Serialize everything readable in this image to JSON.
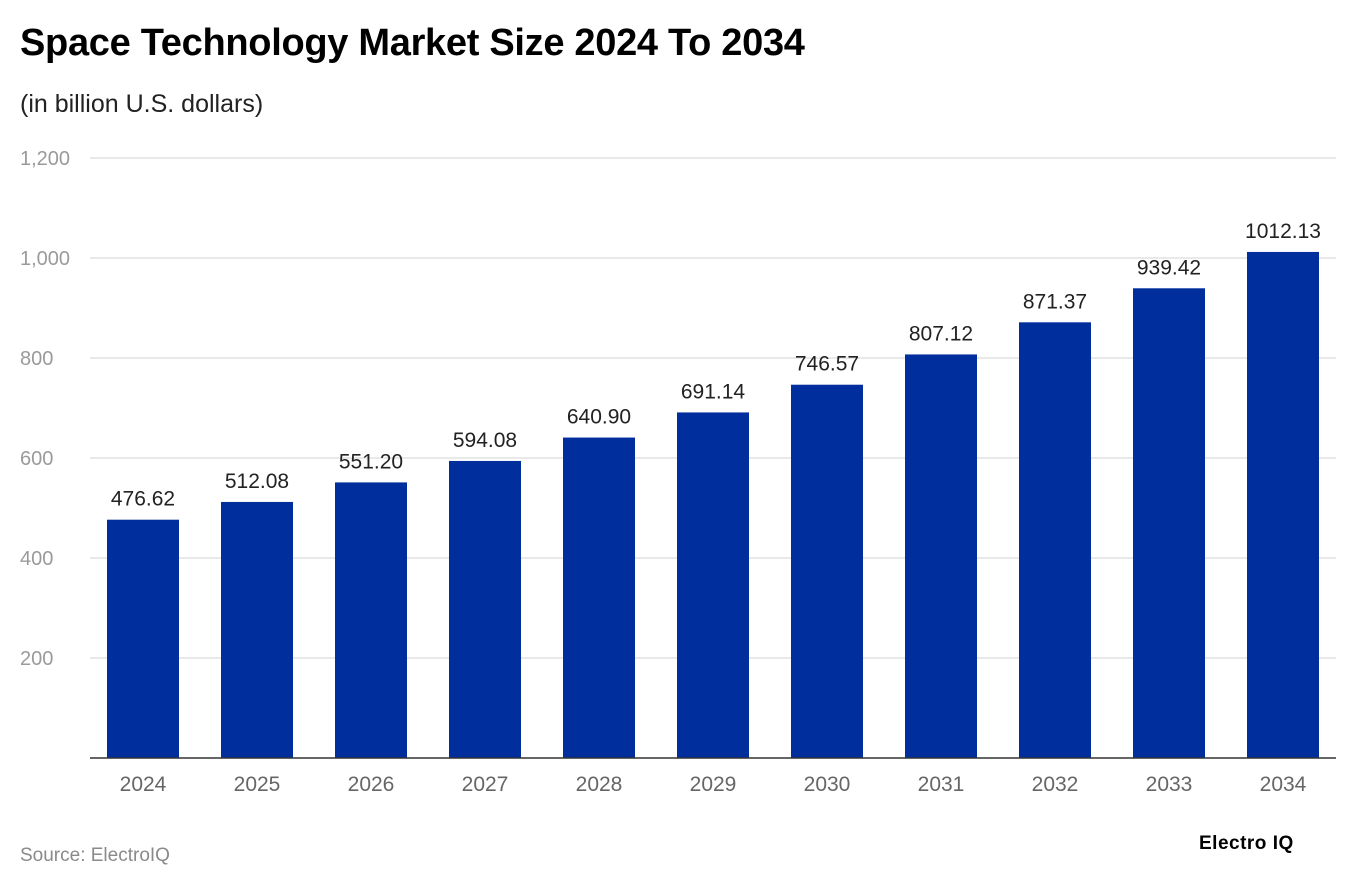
{
  "chart_data": {
    "type": "bar",
    "title": "Space Technology Market Size 2024 To 2034",
    "subtitle": "(in billion U.S. dollars)",
    "categories": [
      "2024",
      "2025",
      "2026",
      "2027",
      "2028",
      "2029",
      "2030",
      "2031",
      "2032",
      "2033",
      "2034"
    ],
    "values": [
      476.62,
      512.08,
      551.2,
      594.08,
      640.9,
      691.14,
      746.57,
      807.12,
      871.37,
      939.42,
      1012.13
    ],
    "value_labels": [
      "476.62",
      "512.08",
      "551.20",
      "594.08",
      "640.90",
      "691.14",
      "746.57",
      "807.12",
      "871.37",
      "939.42",
      "1012.13"
    ],
    "ylim": [
      0,
      1200
    ],
    "yticks": [
      200,
      400,
      600,
      800,
      1000,
      1200
    ],
    "ytick_labels": [
      "200",
      "400",
      "600",
      "800",
      "1,000",
      "1,200"
    ],
    "grid": true,
    "bar_color": "#002e9c"
  },
  "source": "Source: ElectroIQ",
  "logo": "Electro IQ"
}
